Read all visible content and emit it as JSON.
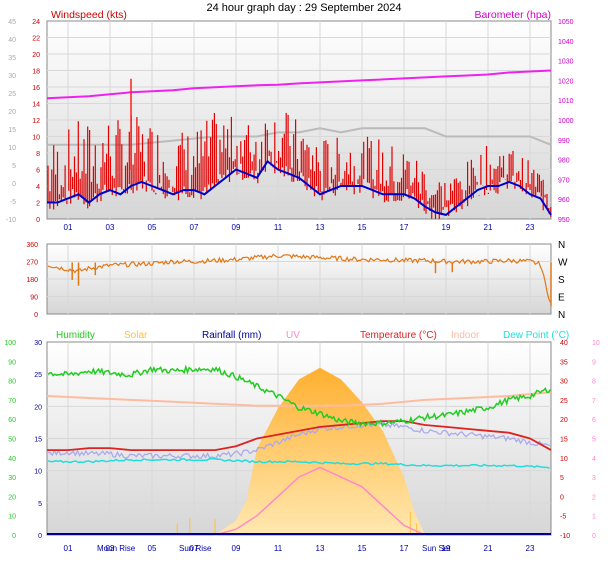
{
  "title": "24 hour graph day : 29 September 2024",
  "colors": {
    "wind": "#e00000",
    "gust": "#ff2020",
    "avg": "#0000cc",
    "baro": "#ee22ee",
    "gray": "#bbbbbb",
    "dir": "#e07818",
    "hum": "#22cc22",
    "solar": "#ffc040",
    "rain": "#000099",
    "uv": "#ff88cc",
    "temp": "#dd2222",
    "indoor": "#ffbba0",
    "dew": "#22dddd",
    "lavender": "#aaaaee",
    "axisLeft": "#cc0000",
    "axisRight": "#cc00cc",
    "xaxis": "#0000aa"
  },
  "chart_data": [
    {
      "type": "line",
      "name": "wind",
      "left_label": "Windspeed (kts)",
      "right_label": "Barometer (hpa)",
      "x_ticks": [
        "01",
        "03",
        "05",
        "07",
        "09",
        "11",
        "13",
        "15",
        "17",
        "19",
        "21",
        "23"
      ],
      "x_range_hours": [
        0,
        24
      ],
      "gray_ticks": [
        "45",
        "40",
        "35",
        "30",
        "25",
        "20",
        "15",
        "10",
        "5",
        "0",
        "-5",
        "-10"
      ],
      "red_ticks": [
        "24",
        "22",
        "20",
        "18",
        "16",
        "14",
        "12",
        "10",
        "8",
        "6",
        "4",
        "2",
        "0"
      ],
      "baro_ticks": [
        "1050",
        "1040",
        "1030",
        "1020",
        "1010",
        "1000",
        "990",
        "980",
        "970",
        "960",
        "950"
      ],
      "ylim_wind": [
        0,
        24
      ],
      "ylim_baro": [
        950,
        1050
      ],
      "baro_series": {
        "x": [
          0,
          1,
          2,
          3,
          4,
          5,
          6,
          7,
          8,
          9,
          10,
          11,
          12,
          13,
          14,
          15,
          16,
          17,
          18,
          19,
          20,
          21,
          22,
          23,
          24
        ],
        "y": [
          1011,
          1011.5,
          1012,
          1013,
          1014,
          1014.5,
          1015,
          1016,
          1016.5,
          1017,
          1017.5,
          1017.8,
          1018.5,
          1019,
          1019.5,
          1020,
          1020.5,
          1021,
          1021.5,
          1022,
          1022.5,
          1023,
          1024,
          1024.5,
          1025
        ]
      },
      "gray_series_kts": {
        "x": [
          0,
          2,
          4,
          6,
          8,
          10,
          11,
          12,
          13,
          14,
          15,
          16,
          17,
          18,
          19,
          20,
          21,
          22,
          23,
          24
        ],
        "y": [
          9,
          9,
          9,
          9.5,
          10,
          10,
          10.5,
          10.5,
          11,
          10.5,
          11,
          11,
          11,
          11,
          10,
          10,
          10,
          10,
          10,
          9
        ]
      },
      "avg_series": {
        "x": [
          0,
          0.5,
          1,
          1.5,
          2,
          2.5,
          3,
          3.5,
          4,
          4.5,
          5,
          5.5,
          6,
          6.5,
          7,
          7.5,
          8,
          8.5,
          9,
          9.5,
          10,
          10.5,
          11,
          11.5,
          12,
          12.5,
          13,
          13.5,
          14,
          14.5,
          15,
          15.5,
          16,
          16.5,
          17,
          17.5,
          18,
          18.5,
          19,
          19.5,
          20,
          20.5,
          21,
          21.5,
          22,
          22.5,
          23,
          23.5,
          24
        ],
        "y": [
          2,
          2,
          2.5,
          3,
          2,
          3,
          3.5,
          3,
          4,
          4.5,
          4,
          3.5,
          3,
          3.5,
          3.5,
          3,
          4,
          5,
          6,
          5.5,
          5,
          7,
          6,
          5.5,
          5,
          4,
          3,
          3.5,
          4,
          4,
          4,
          3.5,
          3,
          3,
          3,
          2.5,
          1.5,
          0.8,
          0.5,
          1.5,
          2.5,
          3.5,
          4,
          4,
          4.5,
          4,
          3,
          2.5,
          0.5
        ]
      },
      "wind_envelope": {
        "x": [
          0,
          0.5,
          1,
          1.5,
          2,
          2.5,
          3,
          3.5,
          4,
          4.5,
          5,
          5.5,
          6,
          6.5,
          7,
          7.5,
          8,
          8.5,
          9,
          9.5,
          10,
          10.5,
          11,
          11.5,
          12,
          12.5,
          13,
          13.5,
          14,
          14.5,
          15,
          15.5,
          16,
          16.5,
          17,
          17.5,
          18,
          18.5,
          19,
          19.5,
          20,
          20.5,
          21,
          21.5,
          22,
          22.5,
          23,
          23.5,
          24
        ],
        "y": [
          8,
          8,
          9,
          10,
          10,
          10,
          11,
          10,
          11,
          10,
          10,
          9,
          9,
          9,
          9,
          10,
          11,
          11,
          10,
          10,
          10,
          12,
          12,
          11,
          10,
          9,
          8,
          8,
          8,
          8,
          8,
          8,
          8,
          7,
          7,
          6,
          5,
          4,
          3,
          4,
          5,
          6,
          7,
          7,
          7,
          6,
          5,
          4,
          3
        ]
      },
      "gust_peak": {
        "x": 4,
        "y": 17
      }
    },
    {
      "type": "line",
      "name": "wind-direction",
      "dir_ticks": [
        "360",
        "270",
        "180",
        "90",
        "0"
      ],
      "compass": [
        "N",
        "W",
        "S",
        "E",
        "N"
      ],
      "ylim": [
        0,
        360
      ],
      "series": {
        "x": [
          0,
          0.5,
          1,
          1.5,
          2,
          3,
          4,
          5,
          6,
          7,
          8,
          9,
          10,
          11,
          12,
          13,
          14,
          15,
          16,
          17,
          18,
          19,
          20,
          21,
          22,
          23,
          23.5,
          24
        ],
        "y": [
          255,
          240,
          230,
          220,
          235,
          250,
          255,
          260,
          270,
          270,
          275,
          280,
          290,
          300,
          295,
          290,
          285,
          280,
          280,
          275,
          275,
          270,
          270,
          270,
          275,
          270,
          255,
          45
        ]
      },
      "spikes": [
        {
          "x": 1.2,
          "y": 175
        },
        {
          "x": 1.5,
          "y": 145
        },
        {
          "x": 2.3,
          "y": 200
        },
        {
          "x": 18.5,
          "y": 210
        },
        {
          "x": 19.3,
          "y": 215
        },
        {
          "x": 24,
          "y": 40
        }
      ]
    },
    {
      "type": "line",
      "name": "multi",
      "legend": [
        "Humidity",
        "Solar",
        "Rainfall (mm)",
        "UV",
        "Temperature (°C)",
        "Indoor",
        "Dew Point (°C)"
      ],
      "hum_ticks": [
        "100",
        "90",
        "80",
        "70",
        "60",
        "50",
        "40",
        "30",
        "20",
        "10",
        "0"
      ],
      "rain_ticks": [
        "30",
        "25",
        "20",
        "15",
        "10",
        "5",
        "0"
      ],
      "temp_ticks": [
        "40",
        "35",
        "30",
        "25",
        "20",
        "15",
        "10",
        "5",
        "0",
        "-5",
        "-10"
      ],
      "uv_ticks": [
        "10",
        "9",
        "8",
        "7",
        "6",
        "5",
        "4",
        "3",
        "2",
        "1",
        "0"
      ],
      "x_ticks": [
        "01",
        "03",
        "05",
        "07",
        "09",
        "11",
        "13",
        "15",
        "17",
        "19",
        "21",
        "23"
      ],
      "annotations": [
        "Moon Rise",
        "Sun Rise",
        "Sun Set"
      ],
      "humidity": {
        "x": [
          0,
          1,
          2,
          3,
          4,
          5,
          6,
          7,
          8,
          9,
          10,
          11,
          12,
          13,
          14,
          15,
          16,
          17,
          18,
          19,
          20,
          21,
          22,
          23,
          24
        ],
        "y": [
          84,
          83,
          85,
          84,
          83,
          86,
          85,
          86,
          86,
          82,
          77,
          72,
          66,
          63,
          59,
          58,
          58,
          59,
          61,
          62,
          64,
          66,
          70,
          72,
          76
        ]
      },
      "temperature": {
        "x": [
          0,
          1,
          2,
          3,
          4,
          5,
          6,
          7,
          8,
          9,
          10,
          11,
          12,
          13,
          14,
          15,
          16,
          17,
          18,
          19,
          20,
          21,
          22,
          23,
          24
        ],
        "y": [
          12,
          12,
          12.5,
          12.5,
          12,
          12,
          12,
          12,
          12,
          13,
          15,
          16,
          17,
          18,
          18.5,
          19,
          19.5,
          19.5,
          18.5,
          18,
          17.5,
          17,
          16.5,
          15,
          12
        ]
      },
      "indoor": {
        "x": [
          0,
          2,
          4,
          6,
          8,
          10,
          12,
          14,
          16,
          18,
          20,
          22,
          24
        ],
        "y": [
          26,
          25.5,
          25,
          24.5,
          24,
          23.5,
          23.5,
          23.5,
          24,
          25,
          25.5,
          26,
          27
        ]
      },
      "dew": {
        "x": [
          0,
          2,
          4,
          6,
          8,
          10,
          12,
          14,
          16,
          18,
          20,
          22,
          24
        ],
        "y": [
          9,
          9,
          9.5,
          9.5,
          9.5,
          9,
          9,
          8.5,
          8.5,
          8,
          8,
          8,
          7.5
        ]
      },
      "lavender": {
        "x": [
          0,
          1,
          2,
          3,
          4,
          5,
          6,
          7,
          8,
          9,
          10,
          11,
          12,
          13,
          14,
          15,
          16,
          17,
          18,
          19,
          20,
          21,
          22,
          23,
          24
        ],
        "y": [
          11,
          11.5,
          11,
          11,
          10.5,
          10.5,
          10.5,
          10.5,
          10.5,
          11,
          12,
          14,
          16,
          17.5,
          18,
          18.5,
          18.5,
          18,
          17,
          16.5,
          16,
          15.5,
          15,
          14,
          13
        ]
      },
      "solar": {
        "x": [
          8,
          9,
          9.5,
          10,
          11,
          12,
          13,
          14,
          15,
          16,
          17,
          17.5,
          18
        ],
        "y": [
          0,
          25,
          60,
          150,
          220,
          270,
          290,
          270,
          230,
          180,
          100,
          40,
          0
        ]
      },
      "solar_max": 310,
      "uv": {
        "x": [
          8,
          9,
          10,
          11,
          12,
          13,
          14,
          15,
          16,
          17,
          18
        ],
        "y": [
          0,
          0.3,
          1,
          2,
          3,
          3.5,
          3,
          2.5,
          1.5,
          0.5,
          0
        ]
      },
      "rain_total_mm": 0
    }
  ]
}
